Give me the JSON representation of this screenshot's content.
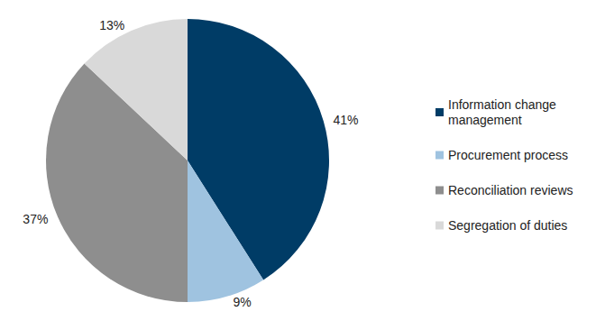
{
  "chart_data": {
    "type": "pie",
    "categories": [
      "Information change management",
      "Procurement process",
      "Reconciliation reviews",
      "Segregation of duties"
    ],
    "values": [
      41,
      9,
      37,
      13
    ],
    "value_labels": [
      "41%",
      "9%",
      "37%",
      "13%"
    ],
    "colors": [
      "#003c66",
      "#9fc3e0",
      "#8e8e8e",
      "#d9d9d9"
    ],
    "legend": "right",
    "data_labels": true
  }
}
